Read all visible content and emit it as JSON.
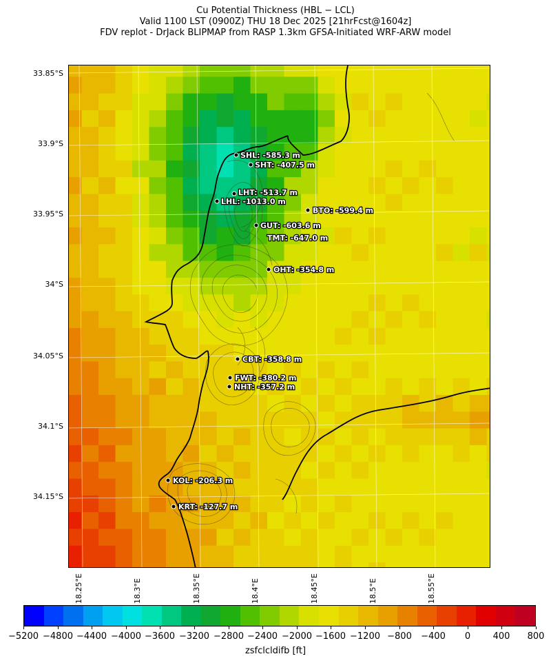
{
  "title": {
    "line1": "Cu Potential Thickness (HBL − LCL)",
    "line2": "Valid 1100 LST (0900Z) THU 18 Dec 2025 [21hrFcst@1604z]",
    "line3": "FDV replot - DrJack BLIPMAP from RASP 1.3km GFSA-Initiated WRF-ARW model"
  },
  "map": {
    "lat_labels": [
      "33.85°S",
      "33.9°S",
      "33.95°S",
      "34°S",
      "34.05°S",
      "34.1°S",
      "34.15°S"
    ],
    "lon_labels": [
      "18.25°E",
      "18.3°E",
      "18.35°E",
      "18.4°E",
      "18.45°E",
      "18.5°E",
      "18.55°E"
    ],
    "sites": [
      {
        "code": "SHL",
        "value": "SHL: -585.3 m"
      },
      {
        "code": "SHT",
        "value": "SHT: -407.5 m"
      },
      {
        "code": "LHT",
        "value": "LHT: -513.7 m"
      },
      {
        "code": "LHL",
        "value": "LHL: -1013.0 m"
      },
      {
        "code": "BTO",
        "value": "BTO: -599.4 m"
      },
      {
        "code": "GUT",
        "value": "GUT: -603.6 m"
      },
      {
        "code": "TMT",
        "value": "TMT: -647.0 m"
      },
      {
        "code": "OHT",
        "value": "OHT: -354.8 m"
      },
      {
        "code": "CBT",
        "value": "CBT: -358.8 m"
      },
      {
        "code": "FWT",
        "value": "FWT: -380.2 m"
      },
      {
        "code": "NHT",
        "value": "NHT: -357.2 m"
      },
      {
        "code": "KOL",
        "value": "KOL: -206.3 m"
      },
      {
        "code": "KRT",
        "value": "KRT: -127.7 m"
      }
    ]
  },
  "colorbar": {
    "label": "zsfclcldifb [ft]",
    "ticks": [
      "−5200",
      "−4800",
      "−4400",
      "−4000",
      "−3600",
      "−3200",
      "−2800",
      "−2400",
      "−2000",
      "−1600",
      "−1200",
      "−800",
      "−400",
      "0",
      "400",
      "800"
    ],
    "colors": [
      "#0000ff",
      "#0040ff",
      "#0070f0",
      "#00a0f0",
      "#00c8f0",
      "#00e0e0",
      "#00e0b0",
      "#00c880",
      "#00b050",
      "#10a830",
      "#20b010",
      "#50c000",
      "#80cc00",
      "#b0d800",
      "#d8e000",
      "#e8e000",
      "#e8d000",
      "#e8b800",
      "#e8a000",
      "#e88000",
      "#e86000",
      "#e84000",
      "#e82000",
      "#e00000",
      "#d00010",
      "#c00020"
    ]
  }
}
